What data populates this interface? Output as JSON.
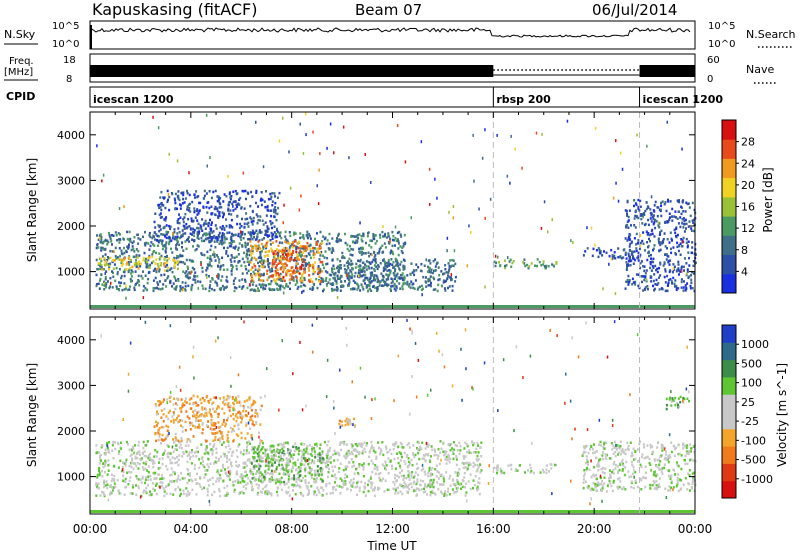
{
  "header": {
    "station": "Kapuskasing (fitACF)",
    "beam": "Beam 07",
    "date": "06/Jul/2014"
  },
  "top_panels": {
    "nsky_label": "N.Sky",
    "nsearch_label": "N.Search",
    "noise_ticks": [
      "10^5",
      "10^0"
    ],
    "freq_label": "Freq.",
    "freq_unit": "[MHz]",
    "freq_ticks": [
      "18",
      "8"
    ],
    "nave_label": "Nave",
    "nave_ticks": [
      "60",
      "0"
    ],
    "cpid_label": "CPID",
    "cpid_segments": [
      {
        "label": "icescan 1200",
        "start_h": 0,
        "end_h": 16
      },
      {
        "label": "rbsp 200",
        "start_h": 16,
        "end_h": 21.8
      },
      {
        "label": "icescan 1200",
        "start_h": 21.8,
        "end_h": 24
      }
    ],
    "cpid_boundaries_h": [
      16,
      21.8
    ]
  },
  "chart_data": [
    {
      "type": "heatmap",
      "panel": "power",
      "xlabel": "",
      "ylabel": "Slant Range [km]",
      "xlim": [
        0,
        24
      ],
      "ylim": [
        180,
        4500
      ],
      "yticks": [
        1000,
        2000,
        3000,
        4000
      ],
      "colorbar": {
        "label": "Power [dB]",
        "ticks": [
          "4",
          "8",
          "12",
          "16",
          "20",
          "24",
          "28"
        ],
        "colors": [
          "#1a2fe0",
          "#2d4fa6",
          "#3f6f86",
          "#4b9a63",
          "#9ac038",
          "#f0d322",
          "#f09a20",
          "#e84a1c",
          "#d81010"
        ]
      },
      "regions": [
        {
          "start_h": 0.2,
          "end_h": 12.5,
          "r_min": 600,
          "r_max": 1900,
          "level": 2
        },
        {
          "start_h": 0.3,
          "end_h": 3.5,
          "r_min": 1050,
          "r_max": 1350,
          "level": 5
        },
        {
          "start_h": 2.5,
          "end_h": 7.5,
          "r_min": 1700,
          "r_max": 2800,
          "level": 1
        },
        {
          "start_h": 6.3,
          "end_h": 9.2,
          "r_min": 800,
          "r_max": 1700,
          "level": 6
        },
        {
          "start_h": 7.2,
          "end_h": 8.5,
          "r_min": 900,
          "r_max": 1500,
          "level": 7
        },
        {
          "start_h": 9.5,
          "end_h": 14.5,
          "r_min": 600,
          "r_max": 1300,
          "level": 2
        },
        {
          "start_h": 16.0,
          "end_h": 18.5,
          "r_min": 1100,
          "r_max": 1300,
          "level": 3
        },
        {
          "start_h": 19.5,
          "end_h": 21.8,
          "r_min": 1300,
          "r_max": 1550,
          "level": 1
        },
        {
          "start_h": 21.2,
          "end_h": 24,
          "r_min": 600,
          "r_max": 2600,
          "level": 1
        }
      ]
    },
    {
      "type": "heatmap",
      "panel": "velocity",
      "xlabel": "Time UT",
      "ylabel": "Slant Range [km]",
      "xlim": [
        0,
        24
      ],
      "ylim": [
        180,
        4500
      ],
      "yticks": [
        1000,
        2000,
        3000,
        4000
      ],
      "xticks": [
        "00:00",
        "04:00",
        "08:00",
        "12:00",
        "16:00",
        "20:00",
        "00:00"
      ],
      "colorbar": {
        "label": "Velocity [m s^-1]",
        "ticks": [
          "1000",
          "500",
          "100",
          "25",
          "-25",
          "-100",
          "-500",
          "-1000"
        ],
        "colors": [
          "#1f3fc8",
          "#2f6a8a",
          "#3c8c4a",
          "#5dc632",
          "#c8c8c8",
          "#c8c8c8",
          "#f2a52a",
          "#f07a1c",
          "#e03a14",
          "#d81010"
        ]
      },
      "regions": [
        {
          "start_h": 0.2,
          "end_h": 15.5,
          "r_min": 600,
          "r_max": 1800,
          "level": 4
        },
        {
          "start_h": 2.5,
          "end_h": 6.8,
          "r_min": 1800,
          "r_max": 2800,
          "level": 6
        },
        {
          "start_h": 6.3,
          "end_h": 9.2,
          "r_min": 900,
          "r_max": 1700,
          "level": 3
        },
        {
          "start_h": 9.8,
          "end_h": 10.5,
          "r_min": 2100,
          "r_max": 2300,
          "level": 6
        },
        {
          "start_h": 16.0,
          "end_h": 18.5,
          "r_min": 1100,
          "r_max": 1300,
          "level": 4
        },
        {
          "start_h": 19.5,
          "end_h": 24,
          "r_min": 700,
          "r_max": 1800,
          "level": 4
        },
        {
          "start_h": 22.8,
          "end_h": 23.8,
          "r_min": 2500,
          "r_max": 2800,
          "level": 3
        }
      ]
    }
  ]
}
